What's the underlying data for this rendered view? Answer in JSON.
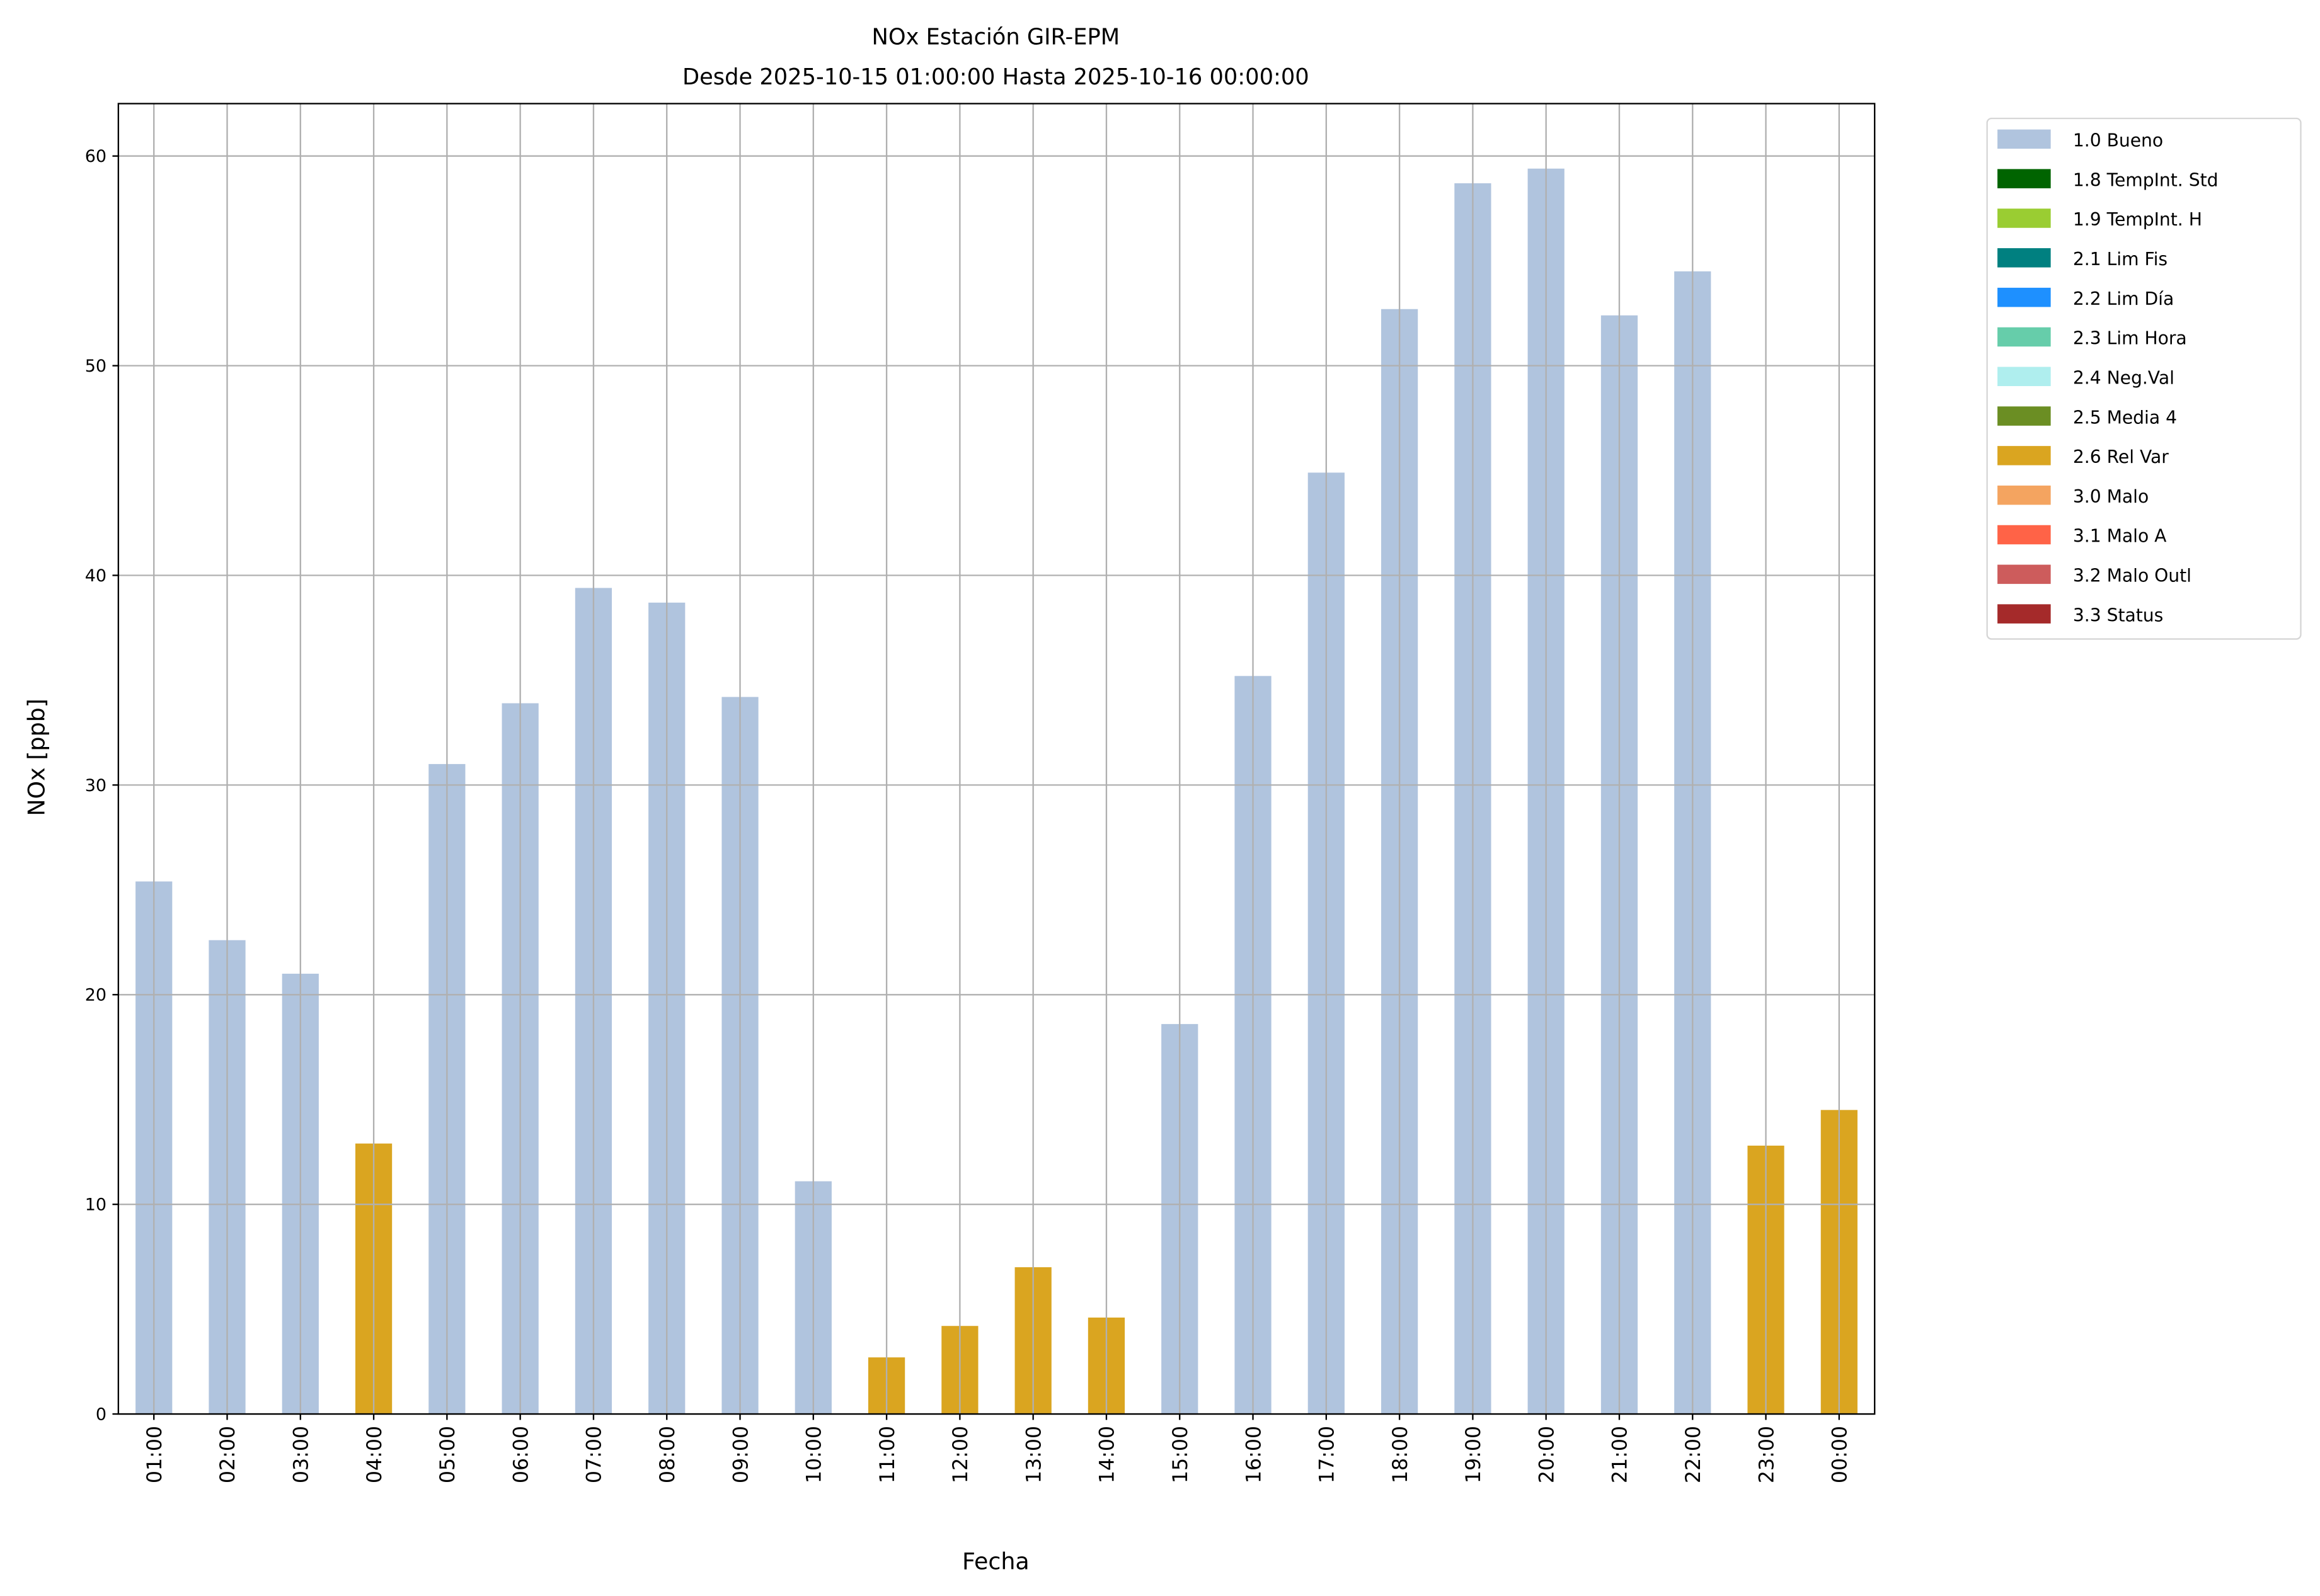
{
  "chart_data": {
    "type": "bar",
    "title": "NOx Estación GIR-EPM",
    "subtitle": "Desde 2025-10-15 01:00:00 Hasta 2025-10-16 00:00:00",
    "xlabel": "Fecha",
    "ylabel": "NOx [ppb]",
    "ylim": [
      0,
      62.5
    ],
    "yticks": [
      "0",
      "10",
      "20",
      "30",
      "40",
      "50",
      "60"
    ],
    "grid": true,
    "legend_position": "outside-right-top",
    "categories": [
      "01:00",
      "02:00",
      "03:00",
      "04:00",
      "05:00",
      "06:00",
      "07:00",
      "08:00",
      "09:00",
      "10:00",
      "11:00",
      "12:00",
      "13:00",
      "14:00",
      "15:00",
      "16:00",
      "17:00",
      "18:00",
      "19:00",
      "20:00",
      "21:00",
      "22:00",
      "23:00",
      "00:00"
    ],
    "values": [
      25.4,
      22.6,
      21.0,
      12.9,
      31.0,
      33.9,
      39.4,
      38.7,
      34.2,
      11.1,
      2.7,
      4.2,
      7.0,
      4.6,
      18.6,
      35.2,
      44.9,
      52.7,
      58.7,
      59.4,
      52.4,
      54.5,
      12.8,
      14.5
    ],
    "flags": [
      "1.0 Bueno",
      "1.0 Bueno",
      "1.0 Bueno",
      "2.6 Rel Var",
      "1.0 Bueno",
      "1.0 Bueno",
      "1.0 Bueno",
      "1.0 Bueno",
      "1.0 Bueno",
      "1.0 Bueno",
      "2.6 Rel Var",
      "2.6 Rel Var",
      "2.6 Rel Var",
      "2.6 Rel Var",
      "1.0 Bueno",
      "1.0 Bueno",
      "1.0 Bueno",
      "1.0 Bueno",
      "1.0 Bueno",
      "1.0 Bueno",
      "1.0 Bueno",
      "1.0 Bueno",
      "2.6 Rel Var",
      "2.6 Rel Var"
    ],
    "legend": [
      {
        "label": "1.0 Bueno",
        "color": "#B0C4DE"
      },
      {
        "label": "1.8 TempInt. Std",
        "color": "#006400"
      },
      {
        "label": "1.9 TempInt. H",
        "color": "#9ACD32"
      },
      {
        "label": "2.1 Lim Fis",
        "color": "#008080"
      },
      {
        "label": "2.2 Lim Día",
        "color": "#1E90FF"
      },
      {
        "label": "2.3 Lim Hora",
        "color": "#66CDAA"
      },
      {
        "label": "2.4 Neg.Val",
        "color": "#AFEEEE"
      },
      {
        "label": "2.5 Media 4",
        "color": "#6B8E23"
      },
      {
        "label": "2.6 Rel Var",
        "color": "#DAA520"
      },
      {
        "label": "3.0 Malo",
        "color": "#F4A460"
      },
      {
        "label": "3.1 Malo A",
        "color": "#FF6347"
      },
      {
        "label": "3.2 Malo Outl",
        "color": "#CD5C5C"
      },
      {
        "label": "3.3 Status",
        "color": "#A52A2A"
      }
    ]
  }
}
